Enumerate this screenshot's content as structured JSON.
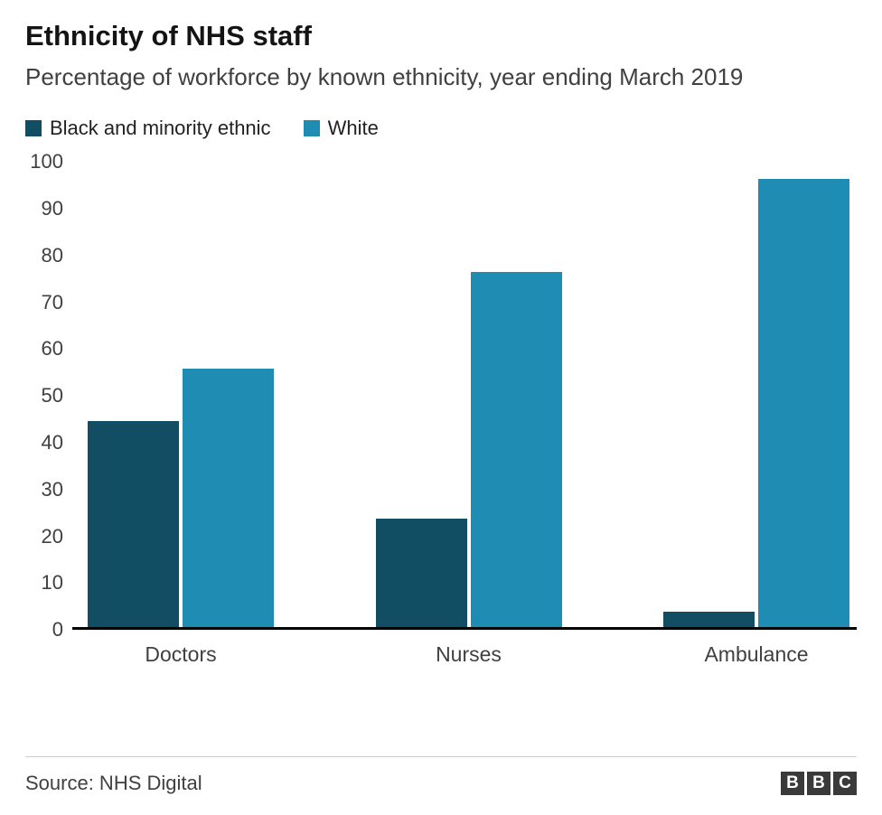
{
  "header": {
    "title": "Ethnicity of NHS staff",
    "subtitle": "Percentage of workforce by known ethnicity, year ending March 2019"
  },
  "chart_data": {
    "type": "bar",
    "title": "Ethnicity of NHS staff",
    "subtitle": "Percentage of workforce by known ethnicity, year ending March 2019",
    "categories": [
      "Doctors",
      "Nurses",
      "Ambulance"
    ],
    "series": [
      {
        "name": "Black and minority ethnic",
        "color": "#124e63",
        "values": [
          44.3,
          23.3,
          3.3
        ]
      },
      {
        "name": "White",
        "color": "#1e8cb3",
        "values": [
          55.5,
          76.3,
          96.3
        ]
      }
    ],
    "xlabel": "",
    "ylabel": "",
    "ylim": [
      0,
      100
    ],
    "yticks": [
      0,
      10,
      20,
      30,
      40,
      50,
      60,
      70,
      80,
      90,
      100
    ],
    "grid": false,
    "legend_position": "top"
  },
  "footer": {
    "source": "Source: NHS Digital",
    "logo_blocks": [
      "B",
      "B",
      "C"
    ]
  }
}
